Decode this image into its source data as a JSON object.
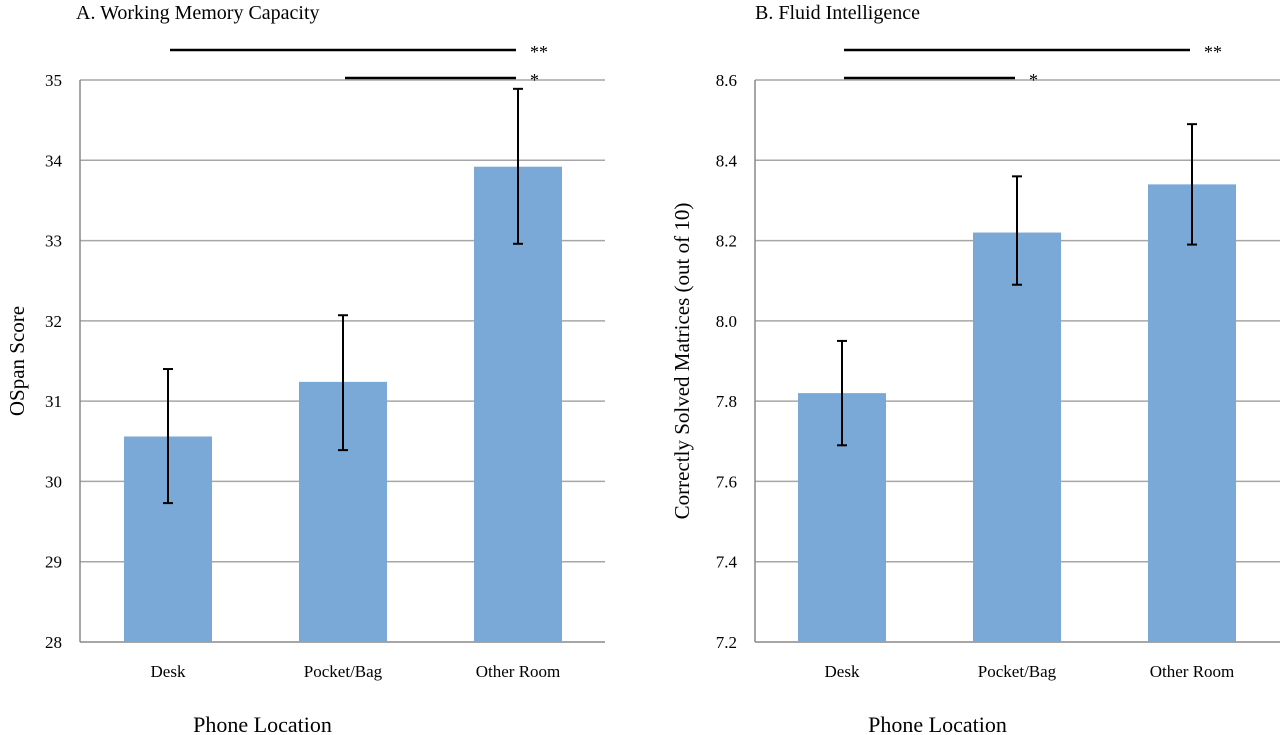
{
  "chart_data": [
    {
      "type": "bar",
      "title": "A. Working Memory Capacity",
      "xlabel": "Phone Location",
      "ylabel": "OSpan Score",
      "categories": [
        "Desk",
        "Pocket/Bag",
        "Other Room"
      ],
      "values": [
        30.56,
        31.24,
        33.92
      ],
      "error_low": [
        29.73,
        30.39,
        32.96
      ],
      "error_high": [
        31.4,
        32.07,
        34.89
      ],
      "ylim": [
        28,
        35
      ],
      "yticks": [
        "28",
        "29",
        "30",
        "31",
        "32",
        "33",
        "34",
        "35"
      ],
      "grid": true,
      "bar_color": "#7aa9d8",
      "significance": [
        {
          "from": "Desk",
          "to": "Other Room",
          "label": "**"
        },
        {
          "from": "Pocket/Bag",
          "to": "Other Room",
          "label": "*"
        }
      ]
    },
    {
      "type": "bar",
      "title": "B. Fluid Intelligence",
      "xlabel": "Phone Location",
      "ylabel": "Correctly Solved Matrices (out of 10)",
      "categories": [
        "Desk",
        "Pocket/Bag",
        "Other Room"
      ],
      "values": [
        7.82,
        8.22,
        8.34
      ],
      "error_low": [
        7.69,
        8.09,
        8.19
      ],
      "error_high": [
        7.95,
        8.36,
        8.49
      ],
      "ylim": [
        7.2,
        8.6
      ],
      "yticks": [
        "7.2",
        "7.4",
        "7.6",
        "7.8",
        "8.0",
        "8.2",
        "8.4",
        "8.6"
      ],
      "grid": true,
      "bar_color": "#7aa9d8",
      "significance": [
        {
          "from": "Desk",
          "to": "Other Room",
          "label": "**"
        },
        {
          "from": "Desk",
          "to": "Pocket/Bag",
          "label": "*"
        }
      ]
    }
  ]
}
